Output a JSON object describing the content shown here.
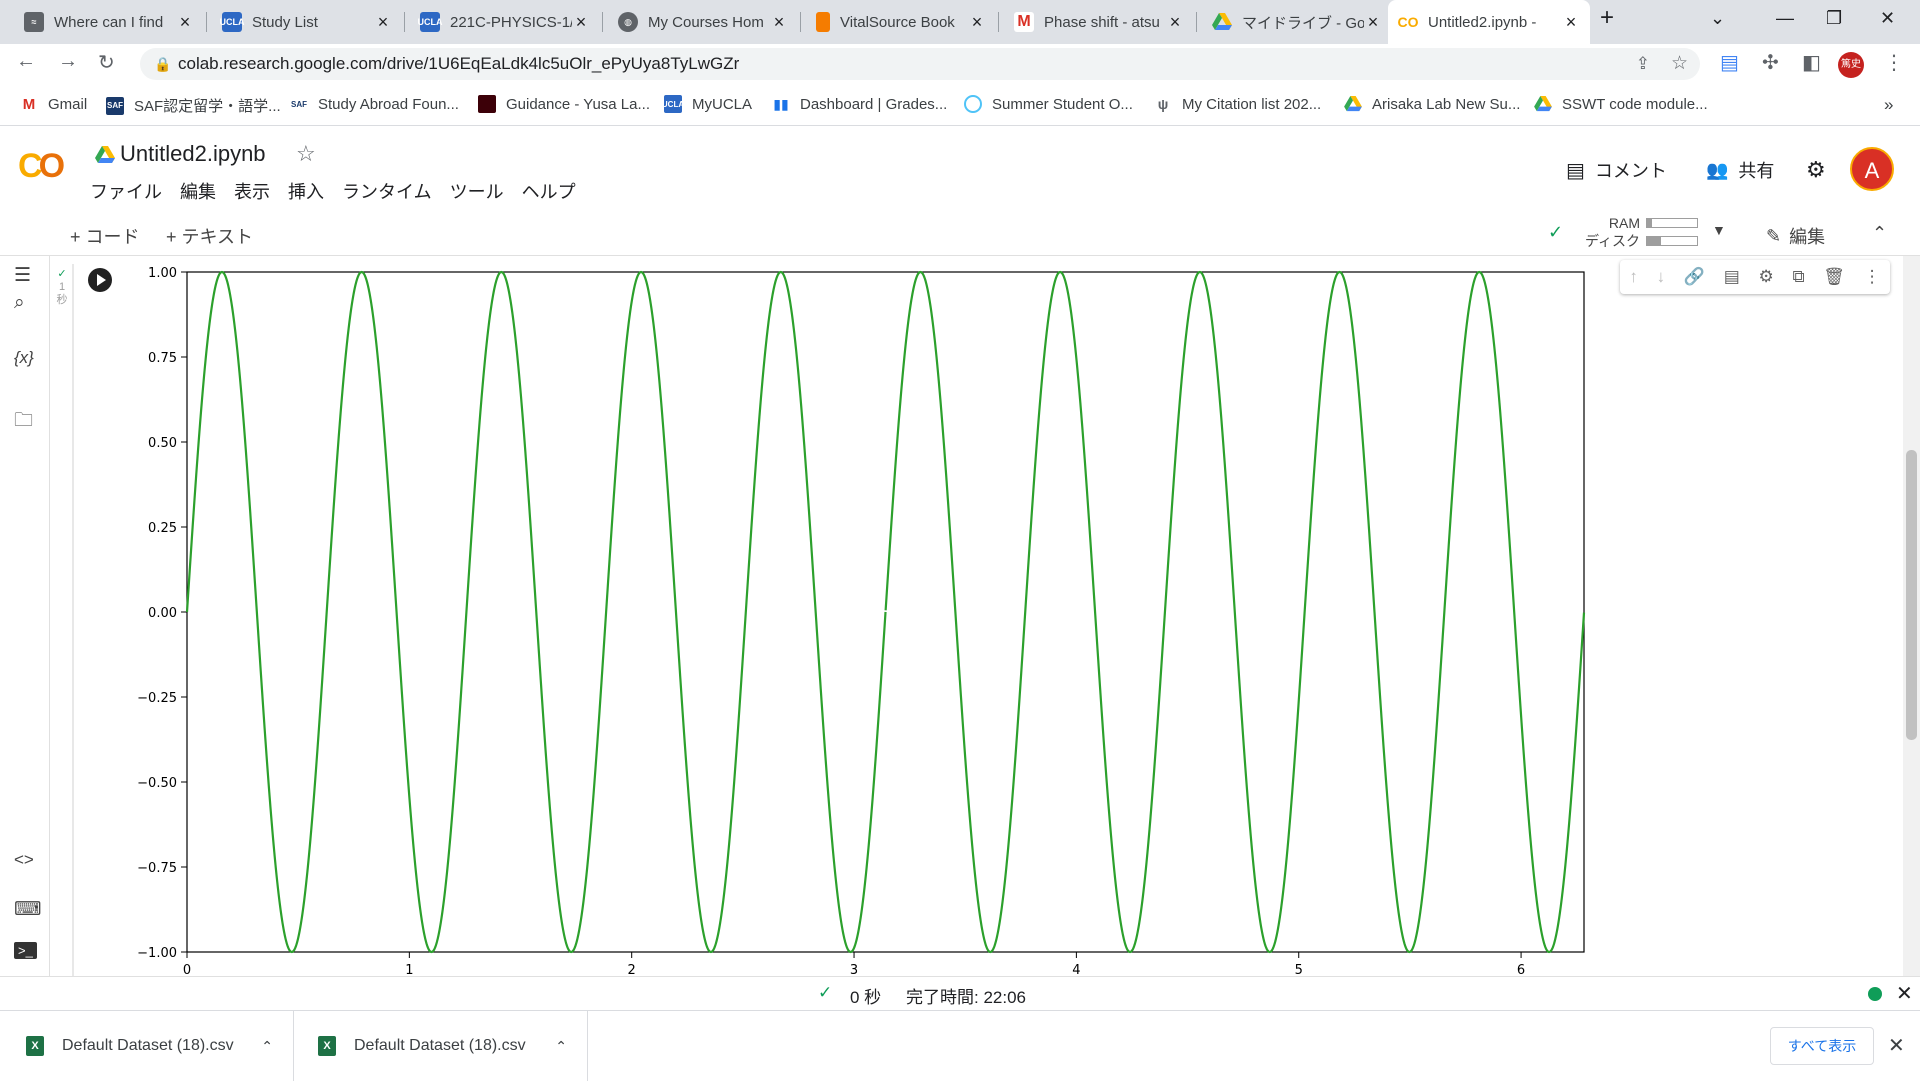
{
  "browser": {
    "tabs": [
      {
        "label": "Where can I find",
        "icon": "fish-icon",
        "color": "#5f6368"
      },
      {
        "label": "Study List",
        "icon": "ucla-icon",
        "color": "#2d68c4"
      },
      {
        "label": "221C-PHYSICS-1/",
        "icon": "ucla-icon",
        "color": "#2d68c4"
      },
      {
        "label": "My Courses Hom",
        "icon": "globe-icon",
        "color": "#5f6368"
      },
      {
        "label": "VitalSource Book",
        "icon": "vitalsource-icon",
        "color": "#f57c00"
      },
      {
        "label": "Phase shift - atsu",
        "icon": "gmail-icon",
        "color": "#d93025"
      },
      {
        "label": "マイドライブ - Goog",
        "icon": "drive-icon",
        "color": "#34a853"
      },
      {
        "label": "Untitled2.ipynb -",
        "icon": "colab-icon",
        "color": "#f9ab00"
      }
    ],
    "url": "colab.research.google.com/drive/1U6EqEaLdk4lc5uOlr_ePyUya8TyLwGZr",
    "profile_badge": "篤史",
    "bookmarks": [
      {
        "label": "Gmail",
        "color": "#d93025"
      },
      {
        "label": "SAF認定留学・語学...",
        "color": "#1a3a6b"
      },
      {
        "label": "Study Abroad Foun...",
        "color": "#1a3a6b"
      },
      {
        "label": "Guidance - Yusa La...",
        "color": "#3c0008"
      },
      {
        "label": "MyUCLA",
        "color": "#2d68c4"
      },
      {
        "label": "Dashboard | Grades...",
        "color": "#1a73e8"
      },
      {
        "label": "Summer Student O...",
        "color": "#4fc3f7"
      },
      {
        "label": "My Citation list 202...",
        "color": "#5f6368"
      },
      {
        "label": "Arisaka Lab New Su...",
        "color": "#34a853"
      },
      {
        "label": "SSWT code module...",
        "color": "#fbbc04"
      }
    ],
    "more_bookmarks": "»"
  },
  "colab": {
    "notebook_title": "Untitled2.ipynb",
    "menu": [
      "ファイル",
      "編集",
      "表示",
      "挿入",
      "ランタイム",
      "ツール",
      "ヘルプ"
    ],
    "comment_label": "コメント",
    "share_label": "共有",
    "avatar_letter": "A",
    "add_code_label": "+ コード",
    "add_text_label": "+ テキスト",
    "ram_label": "RAM",
    "disk_label": "ディスク",
    "edit_label": "編集",
    "cell_exec_time": "1",
    "cell_exec_unit": "秒"
  },
  "status": {
    "elapsed": "0 秒",
    "completed": "完了時間: 22:06"
  },
  "downloads": {
    "items": [
      "Default Dataset (18).csv",
      "Default Dataset (18).csv"
    ],
    "show_all": "すべて表示"
  },
  "chart_data": {
    "type": "line",
    "title": "",
    "xlabel": "",
    "ylabel": "",
    "xlim": [
      0,
      6.283
    ],
    "ylim": [
      -1.0,
      1.0
    ],
    "xticks": [
      "0",
      "1",
      "2",
      "3",
      "4",
      "5",
      "6"
    ],
    "yticks": [
      "1.00",
      "0.75",
      "0.50",
      "0.25",
      "0.00",
      "−0.25",
      "−0.50",
      "−0.75",
      "−1.00"
    ],
    "series": [
      {
        "function": "sin(10x)",
        "x_range": [
          0,
          6.283
        ],
        "color": "#2ca02c",
        "note_shape": "continuous curve except a gap at x≈3.14"
      }
    ]
  }
}
